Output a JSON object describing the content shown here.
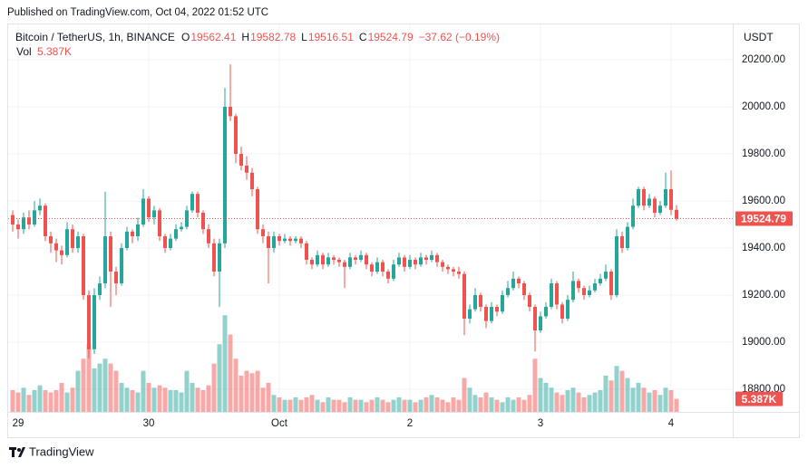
{
  "published": "Published on TradingView.com, Oct 04, 2022 01:52 UTC",
  "brand": "TradingView",
  "chart_data": {
    "type": "candlestick",
    "title": "Bitcoin / TetherUS, 1h, BINANCE",
    "ohlc_letters": [
      "O",
      "H",
      "L",
      "C"
    ],
    "change": "−37.62 (−0.19%)",
    "volume_name": "Vol",
    "currency": "USDT",
    "up_color": "#26a69a",
    "down_color": "#ef5350",
    "grid": true,
    "ylim": [
      18704,
      20346
    ],
    "yticks": [
      {
        "value": 18800,
        "label": "18800.00"
      },
      {
        "value": 19000,
        "label": "19000.00"
      },
      {
        "value": 19200,
        "label": "19200.00"
      },
      {
        "value": 19400,
        "label": "19400.00"
      },
      {
        "value": 19600,
        "label": "19600.00"
      },
      {
        "value": 19800,
        "label": "19800.00"
      },
      {
        "value": 20000,
        "label": "20000.00"
      },
      {
        "value": 20200,
        "label": "20200.00"
      }
    ],
    "y2lim": [
      0,
      160000
    ],
    "xticks": [
      {
        "value": 1,
        "label": "29"
      },
      {
        "value": 25,
        "label": "30"
      },
      {
        "value": 49,
        "label": "Oct"
      },
      {
        "value": 73,
        "label": "2"
      },
      {
        "value": 97,
        "label": "3"
      },
      {
        "value": 121,
        "label": "4"
      }
    ],
    "last_price": {
      "value": 19524.79,
      "label": "19524.79"
    },
    "last_volume": {
      "value": 5387,
      "label": "5.387K"
    },
    "candles": [
      [
        19540,
        19560,
        19470,
        19500
      ],
      [
        19500,
        19520,
        19440,
        19480
      ],
      [
        19480,
        19550,
        19460,
        19530
      ],
      [
        19530,
        19560,
        19480,
        19500
      ],
      [
        19500,
        19600,
        19490,
        19560
      ],
      [
        19560,
        19610,
        19540,
        19580
      ],
      [
        19580,
        19590,
        19430,
        19450
      ],
      [
        19450,
        19470,
        19380,
        19420
      ],
      [
        19420,
        19440,
        19340,
        19390
      ],
      [
        19390,
        19410,
        19330,
        19370
      ],
      [
        19370,
        19510,
        19360,
        19480
      ],
      [
        19480,
        19500,
        19380,
        19400
      ],
      [
        19400,
        19470,
        19380,
        19450
      ],
      [
        19450,
        19460,
        19180,
        19200
      ],
      [
        19200,
        19220,
        18930,
        18970
      ],
      [
        18970,
        19230,
        18950,
        19200
      ],
      [
        19200,
        19280,
        19180,
        19250
      ],
      [
        19250,
        19640,
        19230,
        19450
      ],
      [
        19450,
        19470,
        19150,
        19300
      ],
      [
        19300,
        19320,
        19200,
        19250
      ],
      [
        19250,
        19420,
        19240,
        19400
      ],
      [
        19400,
        19490,
        19390,
        19470
      ],
      [
        19470,
        19480,
        19420,
        19450
      ],
      [
        19450,
        19530,
        19430,
        19500
      ],
      [
        19500,
        19650,
        19490,
        19610
      ],
      [
        19610,
        19620,
        19510,
        19530
      ],
      [
        19530,
        19580,
        19500,
        19560
      ],
      [
        19560,
        19570,
        19430,
        19450
      ],
      [
        19450,
        19460,
        19380,
        19400
      ],
      [
        19400,
        19460,
        19390,
        19440
      ],
      [
        19440,
        19500,
        19430,
        19480
      ],
      [
        19480,
        19510,
        19470,
        19490
      ],
      [
        19490,
        19580,
        19480,
        19560
      ],
      [
        19560,
        19640,
        19550,
        19630
      ],
      [
        19630,
        19640,
        19530,
        19550
      ],
      [
        19550,
        19560,
        19460,
        19480
      ],
      [
        19480,
        19500,
        19400,
        19420
      ],
      [
        19420,
        19440,
        19280,
        19300
      ],
      [
        19300,
        19440,
        19150,
        19420
      ],
      [
        19420,
        20080,
        19400,
        20000
      ],
      [
        20000,
        20180,
        19940,
        19960
      ],
      [
        19960,
        19970,
        19760,
        19800
      ],
      [
        19800,
        19830,
        19730,
        19750
      ],
      [
        19750,
        19790,
        19690,
        19720
      ],
      [
        19720,
        19740,
        19620,
        19650
      ],
      [
        19650,
        19660,
        19460,
        19480
      ],
      [
        19480,
        19500,
        19420,
        19450
      ],
      [
        19450,
        19470,
        19250,
        19400
      ],
      [
        19400,
        19470,
        19380,
        19450
      ],
      [
        19450,
        19460,
        19410,
        19430
      ],
      [
        19430,
        19460,
        19420,
        19440
      ],
      [
        19440,
        19450,
        19410,
        19430
      ],
      [
        19430,
        19450,
        19420,
        19440
      ],
      [
        19440,
        19450,
        19400,
        19420
      ],
      [
        19420,
        19430,
        19330,
        19350
      ],
      [
        19350,
        19360,
        19310,
        19330
      ],
      [
        19330,
        19390,
        19320,
        19370
      ],
      [
        19370,
        19380,
        19310,
        19330
      ],
      [
        19330,
        19380,
        19320,
        19360
      ],
      [
        19360,
        19370,
        19330,
        19350
      ],
      [
        19350,
        19360,
        19320,
        19340
      ],
      [
        19340,
        19350,
        19230,
        19320
      ],
      [
        19320,
        19380,
        19310,
        19360
      ],
      [
        19360,
        19370,
        19330,
        19350
      ],
      [
        19350,
        19390,
        19340,
        19370
      ],
      [
        19370,
        19380,
        19310,
        19330
      ],
      [
        19330,
        19340,
        19280,
        19300
      ],
      [
        19300,
        19360,
        19290,
        19340
      ],
      [
        19340,
        19350,
        19280,
        19300
      ],
      [
        19300,
        19310,
        19250,
        19270
      ],
      [
        19270,
        19350,
        19260,
        19330
      ],
      [
        19330,
        19380,
        19320,
        19360
      ],
      [
        19360,
        19370,
        19300,
        19320
      ],
      [
        19320,
        19370,
        19310,
        19350
      ],
      [
        19350,
        19360,
        19310,
        19330
      ],
      [
        19330,
        19380,
        19320,
        19360
      ],
      [
        19360,
        19370,
        19330,
        19350
      ],
      [
        19350,
        19390,
        19340,
        19370
      ],
      [
        19370,
        19380,
        19320,
        19340
      ],
      [
        19340,
        19350,
        19300,
        19320
      ],
      [
        19320,
        19330,
        19290,
        19310
      ],
      [
        19310,
        19320,
        19280,
        19300
      ],
      [
        19300,
        19320,
        19270,
        19290
      ],
      [
        19290,
        19300,
        19030,
        19100
      ],
      [
        19100,
        19160,
        19080,
        19140
      ],
      [
        19140,
        19230,
        19130,
        19200
      ],
      [
        19200,
        19210,
        19130,
        19150
      ],
      [
        19150,
        19160,
        19060,
        19090
      ],
      [
        19090,
        19170,
        19080,
        19150
      ],
      [
        19150,
        19160,
        19110,
        19130
      ],
      [
        19130,
        19220,
        19120,
        19200
      ],
      [
        19200,
        19260,
        19190,
        19230
      ],
      [
        19230,
        19300,
        19220,
        19270
      ],
      [
        19270,
        19280,
        19230,
        19250
      ],
      [
        19250,
        19260,
        19180,
        19200
      ],
      [
        19200,
        19210,
        19130,
        19150
      ],
      [
        19150,
        19160,
        18960,
        19050
      ],
      [
        19050,
        19130,
        19040,
        19110
      ],
      [
        19110,
        19170,
        19100,
        19150
      ],
      [
        19150,
        19270,
        19140,
        19250
      ],
      [
        19250,
        19260,
        19140,
        19160
      ],
      [
        19160,
        19170,
        19080,
        19100
      ],
      [
        19100,
        19200,
        19090,
        19180
      ],
      [
        19180,
        19300,
        19170,
        19260
      ],
      [
        19260,
        19270,
        19210,
        19230
      ],
      [
        19230,
        19240,
        19180,
        19200
      ],
      [
        19200,
        19240,
        19190,
        19220
      ],
      [
        19220,
        19270,
        19210,
        19250
      ],
      [
        19250,
        19290,
        19240,
        19270
      ],
      [
        19270,
        19330,
        19260,
        19300
      ],
      [
        19300,
        19310,
        19180,
        19200
      ],
      [
        19200,
        19480,
        19190,
        19450
      ],
      [
        19450,
        19470,
        19380,
        19400
      ],
      [
        19400,
        19510,
        19390,
        19490
      ],
      [
        19490,
        19610,
        19480,
        19580
      ],
      [
        19580,
        19660,
        19570,
        19650
      ],
      [
        19650,
        19660,
        19560,
        19580
      ],
      [
        19580,
        19630,
        19570,
        19610
      ],
      [
        19610,
        19620,
        19530,
        19550
      ],
      [
        19550,
        19600,
        19540,
        19580
      ],
      [
        19580,
        19720,
        19570,
        19650
      ],
      [
        19650,
        19730,
        19540,
        19562.41
      ],
      [
        19562.41,
        19582.78,
        19516.51,
        19524.79
      ]
    ],
    "volume": [
      9000,
      8000,
      10000,
      7000,
      9000,
      11000,
      9000,
      8000,
      9000,
      12000,
      8000,
      10000,
      17000,
      22000,
      28000,
      18000,
      20000,
      22000,
      20000,
      17000,
      12000,
      10000,
      9000,
      8000,
      17000,
      12000,
      10000,
      11000,
      10000,
      9000,
      9000,
      8000,
      17000,
      12000,
      10000,
      9000,
      11000,
      20000,
      28000,
      40000,
      32000,
      22000,
      15000,
      17000,
      16000,
      17000,
      10000,
      12000,
      7000,
      6000,
      5000,
      5000,
      6000,
      5000,
      6000,
      7000,
      5000,
      4000,
      6000,
      5000,
      5000,
      4000,
      6000,
      5000,
      5000,
      4000,
      5000,
      6000,
      5000,
      4000,
      5000,
      6000,
      5000,
      5000,
      4000,
      5000,
      6000,
      7000,
      6000,
      5000,
      4000,
      6000,
      5000,
      14000,
      10000,
      7000,
      6000,
      8000,
      6000,
      5000,
      4000,
      6000,
      5000,
      6000,
      5000,
      7000,
      22000,
      14000,
      12000,
      10000,
      8000,
      7000,
      9000,
      10000,
      8000,
      6000,
      7000,
      8000,
      9000,
      15000,
      13000,
      19000,
      17000,
      14000,
      10000,
      12000,
      10000,
      8000,
      9000,
      7000,
      10000,
      9000,
      5387
    ]
  }
}
